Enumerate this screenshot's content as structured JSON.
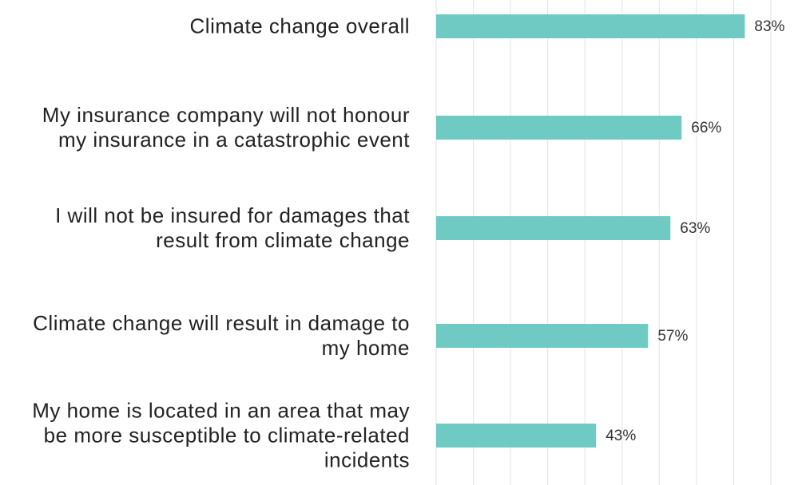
{
  "chart_data": {
    "type": "bar",
    "orientation": "horizontal",
    "categories": [
      "Climate change overall",
      "My insurance company will not honour my insurance in a catastrophic event",
      "I will not be insured for damages that result from climate change",
      "Climate change will result in damage to my home",
      "My home is located in an area that may be more susceptible to climate-related incidents"
    ],
    "values": [
      83,
      66,
      63,
      57,
      43
    ],
    "value_labels": [
      "83%",
      "66%",
      "63%",
      "57%",
      "43%"
    ],
    "color": "#6fcac4",
    "xlim": [
      0,
      90
    ],
    "xticks": [
      0,
      10,
      20,
      30,
      40,
      50,
      60,
      70,
      80,
      90
    ],
    "grid": true
  }
}
